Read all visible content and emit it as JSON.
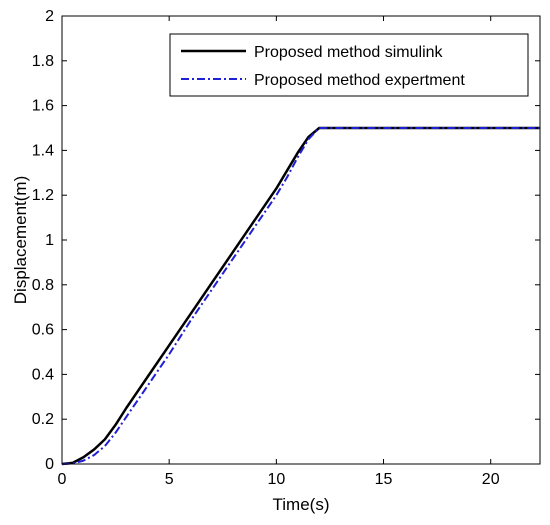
{
  "chart_data": {
    "type": "line",
    "title": "",
    "xlabel": "Time(s)",
    "ylabel": "Displacement(m)",
    "xlim": [
      0,
      22.3
    ],
    "ylim": [
      0,
      2
    ],
    "xticks": [
      0,
      5,
      10,
      15,
      20
    ],
    "yticks": [
      0,
      0.2,
      0.4,
      0.6,
      0.8,
      1,
      1.2,
      1.4,
      1.6,
      1.8,
      2
    ],
    "xtick_labels": [
      "0",
      "5",
      "10",
      "15",
      "20"
    ],
    "ytick_labels": [
      "0",
      "0.2",
      "0.4",
      "0.6",
      "0.8",
      "1",
      "1.2",
      "1.4",
      "1.6",
      "1.8",
      "2"
    ],
    "grid": false,
    "legend_position": "top-right",
    "series": [
      {
        "name": "Proposed method simulink",
        "color": "#000000",
        "style": "solid",
        "x": [
          0,
          0.5,
          1,
          1.5,
          2,
          2.5,
          3,
          3.5,
          4,
          5,
          6,
          7,
          8,
          9,
          10,
          10.5,
          11,
          11.5,
          12,
          13,
          15,
          18,
          20,
          22.3
        ],
        "y": [
          0,
          0.005,
          0.03,
          0.065,
          0.11,
          0.175,
          0.25,
          0.32,
          0.39,
          0.53,
          0.67,
          0.81,
          0.95,
          1.09,
          1.23,
          1.31,
          1.39,
          1.46,
          1.5,
          1.5,
          1.5,
          1.5,
          1.5,
          1.5
        ]
      },
      {
        "name": "Proposed method expertment",
        "color": "#1f1fd6",
        "style": "dashdot",
        "x": [
          0,
          0.5,
          1,
          1.5,
          2,
          2.5,
          3,
          3.5,
          4,
          5,
          6,
          7,
          8,
          9,
          10,
          10.5,
          11,
          11.5,
          12,
          13,
          15,
          18,
          20,
          22.3
        ],
        "y": [
          0,
          0.002,
          0.015,
          0.04,
          0.08,
          0.14,
          0.21,
          0.28,
          0.35,
          0.49,
          0.64,
          0.78,
          0.92,
          1.06,
          1.2,
          1.28,
          1.37,
          1.45,
          1.5,
          1.5,
          1.5,
          1.5,
          1.5,
          1.5
        ]
      }
    ]
  }
}
